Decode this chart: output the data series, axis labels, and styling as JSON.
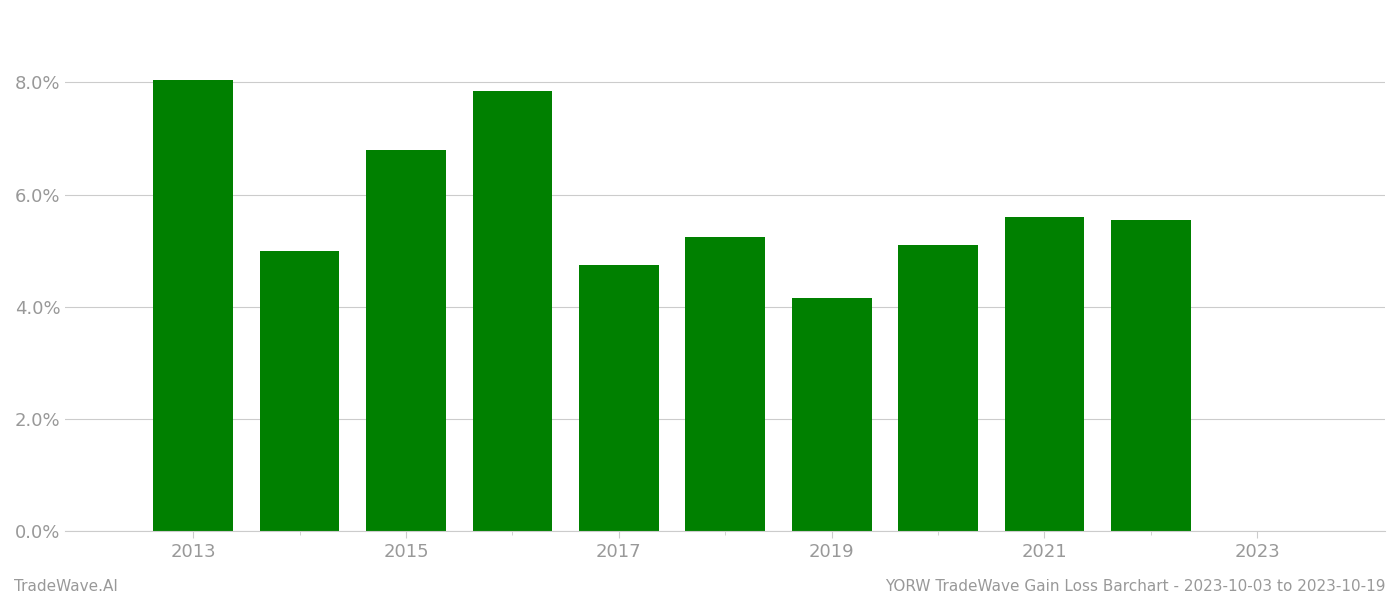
{
  "years": [
    2013,
    2014,
    2015,
    2016,
    2017,
    2018,
    2019,
    2020,
    2021,
    2022
  ],
  "values": [
    0.0805,
    0.05,
    0.068,
    0.0785,
    0.0475,
    0.0525,
    0.0415,
    0.051,
    0.056,
    0.0555
  ],
  "bar_color": "#008000",
  "ylim": [
    0,
    0.092
  ],
  "yticks": [
    0.0,
    0.02,
    0.04,
    0.06,
    0.08
  ],
  "xtick_labels": [
    2013,
    2015,
    2017,
    2019,
    2021,
    2023
  ],
  "xtick_minor": [
    2013,
    2014,
    2015,
    2016,
    2017,
    2018,
    2019,
    2020,
    2021,
    2022,
    2023
  ],
  "xlabel": "",
  "ylabel": "",
  "title": "",
  "footer_left": "TradeWave.AI",
  "footer_right": "YORW TradeWave Gain Loss Barchart - 2023-10-03 to 2023-10-19",
  "bar_width": 0.75,
  "background_color": "#ffffff",
  "grid_color": "#cccccc",
  "tick_label_color": "#999999",
  "footer_color": "#999999",
  "tick_fontsize": 13,
  "footer_fontsize": 11,
  "xlim_left": 2011.8,
  "xlim_right": 2024.2
}
